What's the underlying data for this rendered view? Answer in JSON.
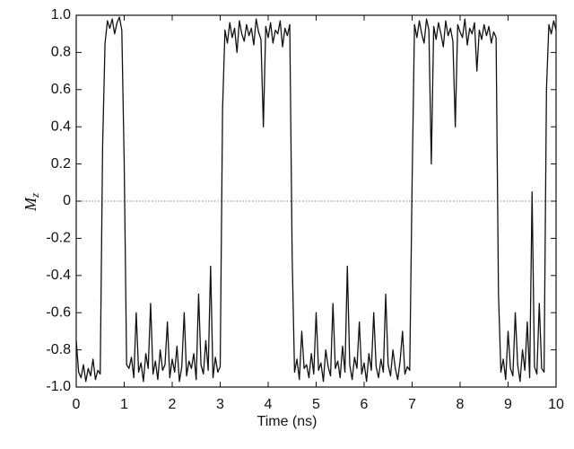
{
  "chart_data": {
    "type": "line",
    "xlabel": "Time (ns)",
    "ylabel": {
      "main": "M",
      "sub": "z"
    },
    "xlim": [
      0,
      10
    ],
    "xticks": [
      0,
      1,
      2,
      3,
      4,
      5,
      6,
      7,
      8,
      9,
      10
    ],
    "ylim": [
      -1,
      1
    ],
    "yticks": [
      {
        "value": -1,
        "label": "-1.0"
      },
      -0.8,
      -0.6,
      -0.4,
      -0.2,
      0,
      0.2,
      0.4,
      0.6,
      0.8,
      {
        "value": 1,
        "label": "1.0"
      }
    ],
    "reference_line": 0,
    "x": [
      0,
      0.05,
      0.1,
      0.15,
      0.2,
      0.25,
      0.3,
      0.35,
      0.4,
      0.45,
      0.5,
      0.55,
      0.6,
      0.65,
      0.7,
      0.75,
      0.8,
      0.85,
      0.9,
      0.95,
      1,
      1.05,
      1.1,
      1.15,
      1.2,
      1.25,
      1.3,
      1.35,
      1.4,
      1.45,
      1.5,
      1.55,
      1.6,
      1.65,
      1.7,
      1.75,
      1.8,
      1.85,
      1.9,
      1.95,
      2,
      2.05,
      2.1,
      2.15,
      2.2,
      2.25,
      2.3,
      2.35,
      2.4,
      2.45,
      2.5,
      2.55,
      2.6,
      2.65,
      2.7,
      2.75,
      2.8,
      2.85,
      2.9,
      2.95,
      3,
      3.05,
      3.1,
      3.15,
      3.2,
      3.25,
      3.3,
      3.35,
      3.4,
      3.45,
      3.5,
      3.55,
      3.6,
      3.65,
      3.7,
      3.75,
      3.8,
      3.85,
      3.9,
      3.95,
      4,
      4.05,
      4.1,
      4.15,
      4.2,
      4.25,
      4.3,
      4.35,
      4.4,
      4.45,
      4.5,
      4.55,
      4.6,
      4.65,
      4.7,
      4.75,
      4.8,
      4.85,
      4.9,
      4.95,
      5,
      5.05,
      5.1,
      5.15,
      5.2,
      5.25,
      5.3,
      5.35,
      5.4,
      5.45,
      5.5,
      5.55,
      5.6,
      5.65,
      5.7,
      5.75,
      5.8,
      5.85,
      5.9,
      5.95,
      6,
      6.05,
      6.1,
      6.15,
      6.2,
      6.25,
      6.3,
      6.35,
      6.4,
      6.45,
      6.5,
      6.55,
      6.6,
      6.65,
      6.7,
      6.75,
      6.8,
      6.85,
      6.9,
      6.95,
      7,
      7.05,
      7.1,
      7.15,
      7.2,
      7.25,
      7.3,
      7.35,
      7.4,
      7.45,
      7.5,
      7.55,
      7.6,
      7.65,
      7.7,
      7.75,
      7.8,
      7.85,
      7.9,
      7.95,
      8,
      8.05,
      8.1,
      8.15,
      8.2,
      8.25,
      8.3,
      8.35,
      8.4,
      8.45,
      8.5,
      8.55,
      8.6,
      8.65,
      8.7,
      8.75,
      8.8,
      8.85,
      8.9,
      8.95,
      9,
      9.05,
      9.1,
      9.15,
      9.2,
      9.25,
      9.3,
      9.35,
      9.4,
      9.45,
      9.5,
      9.55,
      9.6,
      9.65,
      9.7,
      9.75,
      9.8,
      9.85,
      9.9,
      9.95,
      10
    ],
    "series": [
      {
        "color": "#111111",
        "values": [
          -0.75,
          -0.92,
          -0.95,
          -0.88,
          -0.97,
          -0.9,
          -0.94,
          -0.85,
          -0.96,
          -0.91,
          -0.93,
          0.3,
          0.85,
          0.97,
          0.93,
          0.98,
          0.9,
          0.96,
          0.99,
          0.92,
          0.2,
          -0.88,
          -0.9,
          -0.84,
          -0.95,
          -0.6,
          -0.92,
          -0.87,
          -0.97,
          -0.82,
          -0.9,
          -0.55,
          -0.93,
          -0.86,
          -0.96,
          -0.8,
          -0.91,
          -0.88,
          -0.65,
          -0.95,
          -0.85,
          -0.92,
          -0.78,
          -0.97,
          -0.89,
          -0.6,
          -0.94,
          -0.86,
          -0.9,
          -0.82,
          -0.96,
          -0.5,
          -0.88,
          -0.93,
          -0.75,
          -0.91,
          -0.35,
          -0.95,
          -0.84,
          -0.92,
          -0.89,
          0.5,
          0.92,
          0.85,
          0.96,
          0.88,
          0.93,
          0.8,
          0.97,
          0.9,
          0.86,
          0.95,
          0.89,
          0.93,
          0.84,
          0.98,
          0.91,
          0.87,
          0.4,
          0.94,
          0.88,
          0.96,
          0.85,
          0.92,
          0.9,
          0.97,
          0.83,
          0.93,
          0.89,
          0.95,
          -0.3,
          -0.92,
          -0.85,
          -0.96,
          -0.7,
          -0.9,
          -0.88,
          -0.95,
          -0.82,
          -0.93,
          -0.6,
          -0.91,
          -0.87,
          -0.97,
          -0.8,
          -0.89,
          -0.94,
          -0.55,
          -0.9,
          -0.86,
          -0.95,
          -0.78,
          -0.92,
          -0.35,
          -0.88,
          -0.96,
          -0.84,
          -0.9,
          -0.65,
          -0.93,
          -0.87,
          -0.97,
          -0.82,
          -0.91,
          -0.6,
          -0.89,
          -0.95,
          -0.85,
          -0.92,
          -0.5,
          -0.88,
          -0.94,
          -0.8,
          -0.9,
          -0.96,
          -0.86,
          -0.7,
          -0.93,
          -0.89,
          -0.91,
          0.1,
          0.95,
          0.88,
          0.97,
          0.9,
          0.85,
          0.98,
          0.92,
          0.2,
          0.94,
          0.87,
          0.96,
          0.9,
          0.83,
          0.97,
          0.89,
          0.93,
          0.86,
          0.4,
          0.95,
          0.91,
          0.88,
          0.98,
          0.84,
          0.93,
          0.9,
          0.96,
          0.7,
          0.92,
          0.87,
          0.95,
          0.89,
          0.94,
          0.85,
          0.91,
          0.88,
          -0.5,
          -0.92,
          -0.85,
          -0.96,
          -0.7,
          -0.9,
          -0.94,
          -0.6,
          -0.88,
          -0.97,
          -0.8,
          -0.91,
          -0.65,
          -0.95,
          0.05,
          -0.89,
          -0.93,
          -0.55,
          -0.9,
          -0.92,
          0.6,
          0.95,
          0.9,
          0.97,
          0.92
        ]
      }
    ]
  }
}
